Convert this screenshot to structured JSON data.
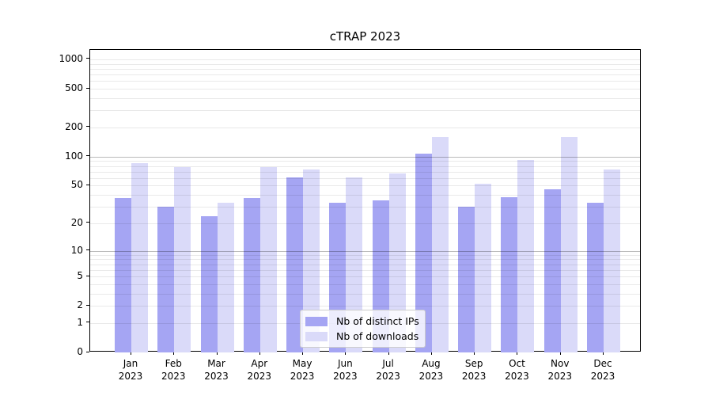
{
  "title": "cTRAP 2023",
  "chart_data": {
    "type": "bar",
    "title": "cTRAP 2023",
    "scale": "log10(1+x)",
    "grid": true,
    "legend_position": "lower center",
    "categories": [
      "Jan",
      "Feb",
      "Mar",
      "Apr",
      "May",
      "Jun",
      "Jul",
      "Aug",
      "Sep",
      "Oct",
      "Nov",
      "Dec"
    ],
    "year_label": "2023",
    "series": [
      {
        "name": "Nb of distinct IPs",
        "color": "#a5a5f3",
        "values": [
          37,
          30,
          24,
          37,
          61,
          33,
          35,
          107,
          30,
          38,
          46,
          33
        ]
      },
      {
        "name": "Nb of downloads",
        "color": "#dadaf9",
        "values": [
          85,
          78,
          33,
          78,
          73,
          61,
          67,
          158,
          52,
          93,
          160,
          73
        ]
      }
    ],
    "yticks": [
      1000,
      500,
      200,
      100,
      50,
      20,
      10,
      5,
      2,
      1,
      0
    ],
    "ylim": [
      0,
      1250
    ]
  }
}
